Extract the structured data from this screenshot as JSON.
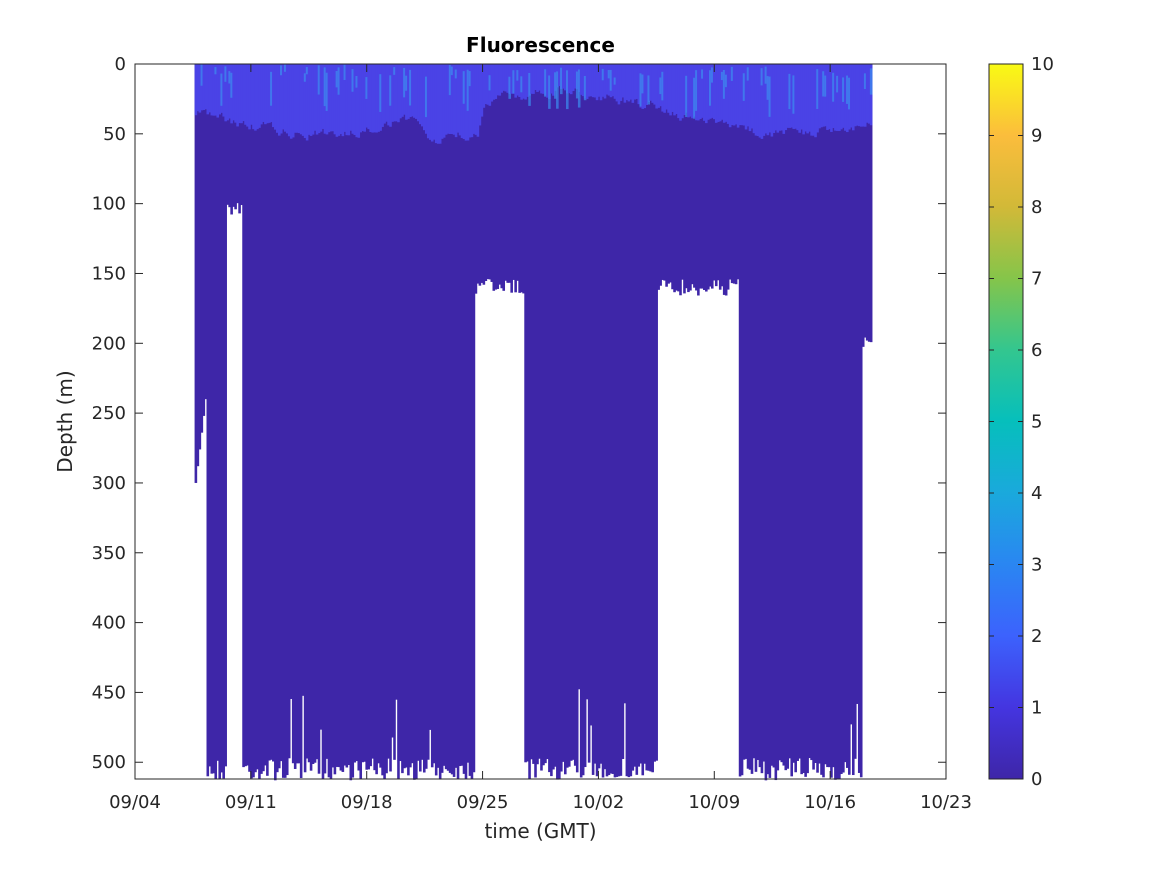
{
  "chart_data": {
    "type": "heatmap",
    "title": "Fluorescence",
    "xlabel": "time (GMT)",
    "ylabel": "Depth (m)",
    "x_ticks": [
      "09/04",
      "09/11",
      "09/18",
      "09/25",
      "10/02",
      "10/09",
      "10/16",
      "10/23"
    ],
    "y_ticks": [
      0,
      50,
      100,
      150,
      200,
      250,
      300,
      350,
      400,
      450,
      500
    ],
    "xlim": [
      "09/04",
      "10/23"
    ],
    "ylim": [
      0,
      512
    ],
    "y_reversed": true,
    "colorbar": {
      "ticks": [
        0,
        1,
        2,
        3,
        4,
        5,
        6,
        7,
        8,
        9,
        10
      ],
      "range": [
        0,
        10
      ],
      "colormap": "parula",
      "stops": [
        "#3e26a8",
        "#4435e0",
        "#3c62fd",
        "#2a86f2",
        "#1aa9dc",
        "#06bfbc",
        "#33c68f",
        "#85c54a",
        "#d2b938",
        "#fbbd3c",
        "#f9fa14"
      ]
    },
    "background_value_color": "#3e26a8",
    "surface_layer_color": "#4a43e6",
    "surface_highlight_color": "#3c8df0",
    "data_coverage": {
      "start": "09/07",
      "end": "10/18",
      "typical_max_depth": 505,
      "gaps": [
        {
          "from": "09/09",
          "to": "09/10",
          "below_depth": 105
        },
        {
          "from": "09/24",
          "to": "09/27",
          "below_depth": 160
        },
        {
          "from": "10/05",
          "to": "10/10",
          "below_depth": 160
        }
      ],
      "surface_layer_depth": [
        0,
        60
      ],
      "fluorescence_range_observed": [
        0,
        3
      ]
    }
  }
}
